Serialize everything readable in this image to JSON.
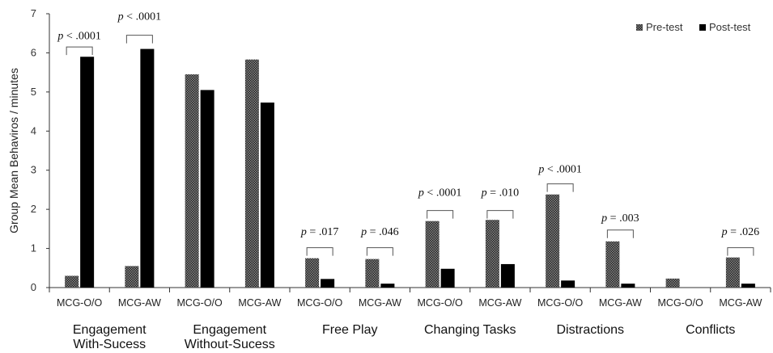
{
  "chart_data": {
    "type": "bar",
    "ylabel": "Group Mean  Behaviros / minutes",
    "ylim": [
      0,
      7
    ],
    "yticks": [
      0,
      1,
      2,
      3,
      4,
      5,
      6,
      7
    ],
    "grid": false,
    "legend_position": "top-right",
    "categories": [
      "MCG-O/O",
      "MCG-AW",
      "MCG-O/O",
      "MCG-AW",
      "MCG-O/O",
      "MCG-AW",
      "MCG-O/O",
      "MCG-AW",
      "MCG-O/O",
      "MCG-AW",
      "MCG-O/O",
      "MCG-AW"
    ],
    "groups": [
      {
        "lines": [
          "Engagement",
          "With-Sucess"
        ],
        "start": 0,
        "end": 1
      },
      {
        "lines": [
          "Engagement",
          "Without-Sucess"
        ],
        "start": 2,
        "end": 3
      },
      {
        "lines": [
          "Free Play"
        ],
        "start": 4,
        "end": 5
      },
      {
        "lines": [
          "Changing Tasks"
        ],
        "start": 6,
        "end": 7
      },
      {
        "lines": [
          "Distractions"
        ],
        "start": 8,
        "end": 9
      },
      {
        "lines": [
          "Conflicts"
        ],
        "start": 10,
        "end": 11
      }
    ],
    "series": [
      {
        "name": "Pre-test",
        "color": "#555555",
        "pattern": "hatched",
        "values": [
          0.3,
          0.55,
          5.45,
          5.83,
          0.75,
          0.73,
          1.7,
          1.73,
          2.38,
          1.18,
          0.23,
          0.77
        ]
      },
      {
        "name": "Post-test",
        "color": "#000000",
        "pattern": "solid",
        "values": [
          5.9,
          6.1,
          5.05,
          4.73,
          0.22,
          0.1,
          0.48,
          0.6,
          0.18,
          0.1,
          0,
          0.1
        ]
      }
    ],
    "annotations": [
      {
        "category": 0,
        "p": "p",
        "rest": " < .0001",
        "bracket_y": 6.15,
        "text_y": 6.45
      },
      {
        "category": 1,
        "p": "p",
        "rest": " < .0001",
        "bracket_y": 6.45,
        "text_y": 6.95
      },
      {
        "category": 4,
        "p": "p",
        "rest": " = .017",
        "bracket_y": 1.02,
        "text_y": 1.45
      },
      {
        "category": 5,
        "p": "p",
        "rest": " = .046",
        "bracket_y": 1.02,
        "text_y": 1.45
      },
      {
        "category": 6,
        "p": "p",
        "rest": " < .0001",
        "bracket_y": 1.97,
        "text_y": 2.45
      },
      {
        "category": 7,
        "p": "p",
        "rest": " = .010",
        "bracket_y": 1.97,
        "text_y": 2.45
      },
      {
        "category": 8,
        "p": "p",
        "rest": " < .0001",
        "bracket_y": 2.65,
        "text_y": 3.05
      },
      {
        "category": 9,
        "p": "p",
        "rest": " = .003",
        "bracket_y": 1.47,
        "text_y": 1.8
      },
      {
        "category": 11,
        "p": "p",
        "rest": " = .026",
        "bracket_y": 1.02,
        "text_y": 1.45
      }
    ]
  }
}
